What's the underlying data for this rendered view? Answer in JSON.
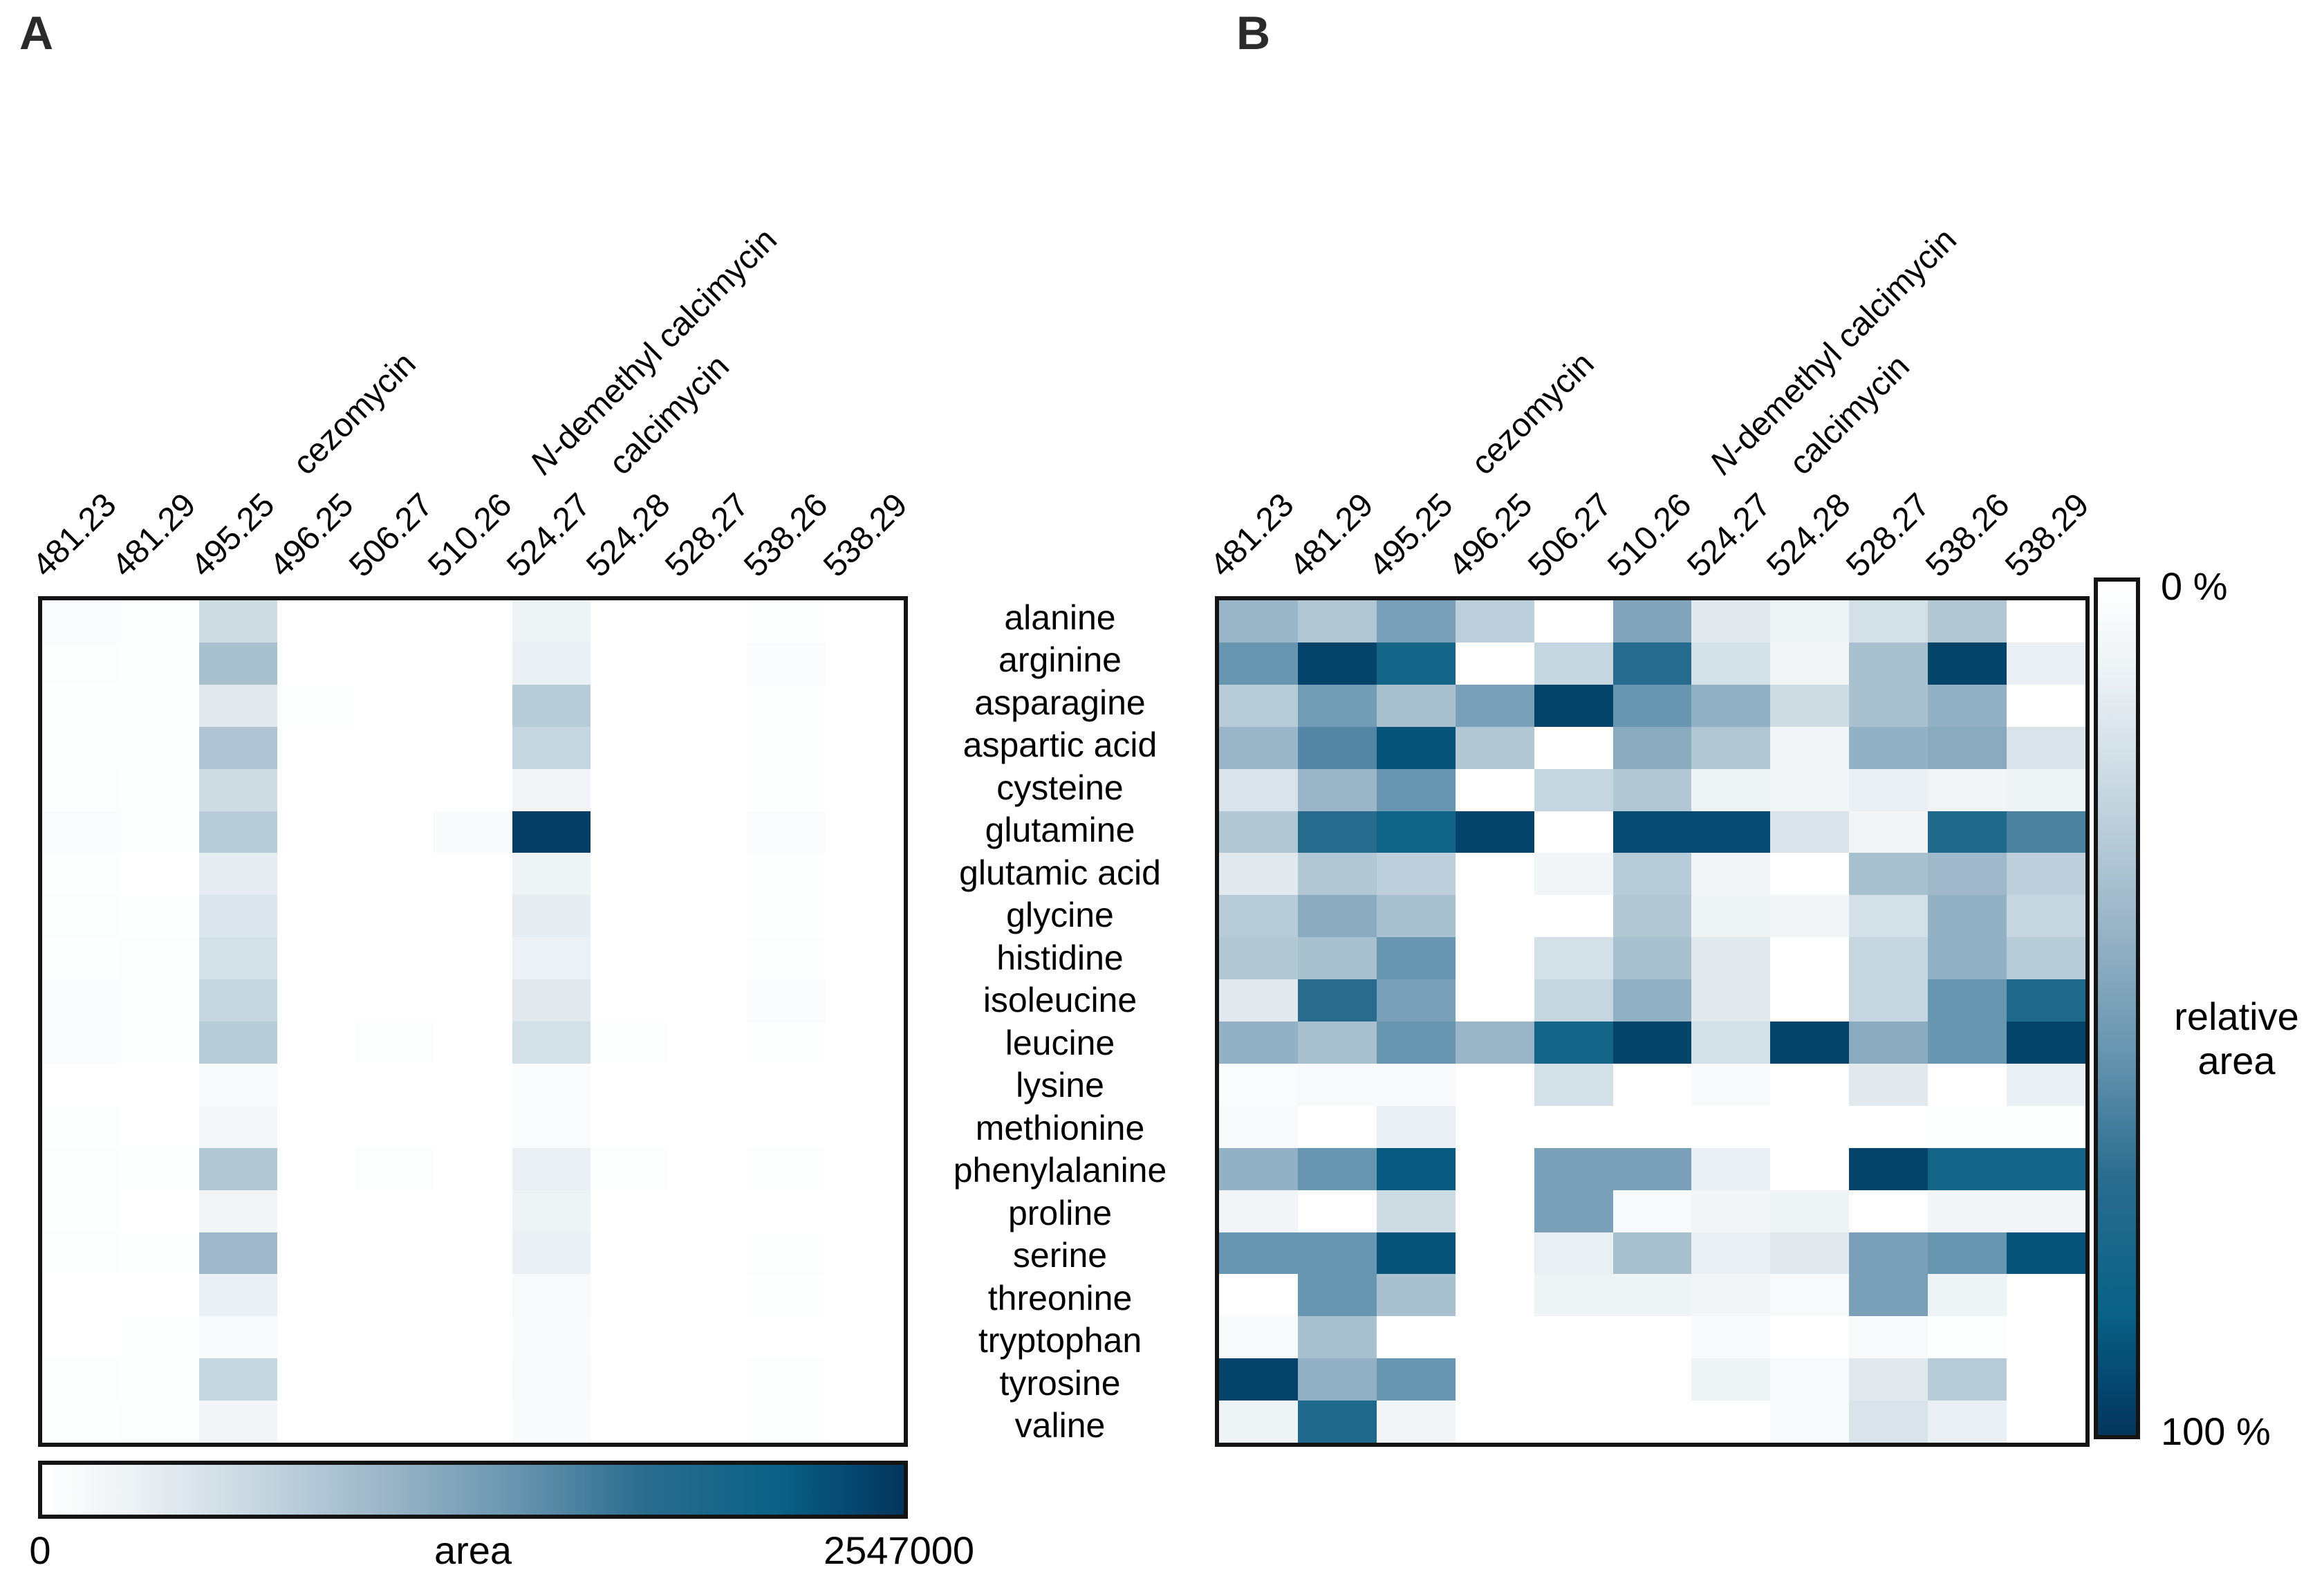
{
  "figure": {
    "panel_a": {
      "label": "A"
    },
    "panel_b": {
      "label": "B"
    },
    "colorbar_a": {
      "title": "area",
      "min_label": "0",
      "max_label": "2547000",
      "orientation": "horizontal"
    },
    "colorbar_b": {
      "title": "relative area",
      "min_label": "0 %",
      "max_label": "100 %",
      "orientation": "vertical"
    },
    "colors": {
      "heat_min": "#ffffff",
      "heat_mid": "#6895b0",
      "heat_max": "#03355b",
      "border": "#141414"
    }
  },
  "chart_data": [
    {
      "panel": "A",
      "type": "heatmap",
      "columns": [
        {
          "mz": "481.23",
          "compound": ""
        },
        {
          "mz": "481.29",
          "compound": ""
        },
        {
          "mz": "495.25",
          "compound": "cezomycin",
          "compound_italic_first": false
        },
        {
          "mz": "496.25",
          "compound": ""
        },
        {
          "mz": "506.27",
          "compound": ""
        },
        {
          "mz": "510.26",
          "compound": "N-demethyl calcimycin",
          "compound_italic_first": true
        },
        {
          "mz": "524.27",
          "compound": "calcimycin",
          "compound_italic_first": false
        },
        {
          "mz": "524.28",
          "compound": ""
        },
        {
          "mz": "528.27",
          "compound": ""
        },
        {
          "mz": "538.26",
          "compound": ""
        },
        {
          "mz": "538.29",
          "compound": ""
        }
      ],
      "rows": [
        "alanine",
        "arginine",
        "asparagine",
        "aspartic acid",
        "cysteine",
        "glutamine",
        "glutamic acid",
        "glycine",
        "histidine",
        "isoleucine",
        "leucine",
        "lysine",
        "methionine",
        "phenylalanine",
        "proline",
        "serine",
        "threonine",
        "tryptophan",
        "tyrosine",
        "valine"
      ],
      "colorscale": {
        "label": "area",
        "min": 0,
        "max": 2547000
      },
      "values_are_fraction_of_max": true,
      "values": [
        [
          0.03,
          0.01,
          0.22,
          0,
          0,
          0,
          0.1,
          0,
          0,
          0.02,
          0
        ],
        [
          0.02,
          0.01,
          0.35,
          0,
          0,
          0,
          0.12,
          0,
          0,
          0.03,
          0
        ],
        [
          0.01,
          0.01,
          0.15,
          0.02,
          0,
          0,
          0.3,
          0,
          0,
          0.02,
          0
        ],
        [
          0.01,
          0.01,
          0.33,
          0,
          0,
          0,
          0.25,
          0,
          0,
          0.02,
          0
        ],
        [
          0.02,
          0.01,
          0.22,
          0,
          0,
          0,
          0.08,
          0,
          0,
          0.01,
          0
        ],
        [
          0.03,
          0.01,
          0.3,
          0,
          0,
          0.04,
          0.97,
          0,
          0,
          0.03,
          0
        ],
        [
          0.01,
          0,
          0.13,
          0,
          0,
          0,
          0.1,
          0,
          0,
          0.01,
          0
        ],
        [
          0.02,
          0.01,
          0.17,
          0,
          0,
          0,
          0.13,
          0,
          0,
          0.01,
          0
        ],
        [
          0.01,
          0.02,
          0.2,
          0,
          0,
          0,
          0.11,
          0,
          0,
          0.02,
          0
        ],
        [
          0.03,
          0.01,
          0.25,
          0,
          0,
          0,
          0.15,
          0,
          0,
          0.03,
          0
        ],
        [
          0.03,
          0.01,
          0.3,
          0,
          0.02,
          0,
          0.2,
          0.02,
          0,
          0.02,
          0
        ],
        [
          0,
          0,
          0.04,
          0,
          0,
          0,
          0.03,
          0,
          0,
          0,
          0
        ],
        [
          0.01,
          0,
          0.07,
          0,
          0,
          0,
          0.03,
          0,
          0,
          0,
          0
        ],
        [
          0.02,
          0.01,
          0.32,
          0,
          0.02,
          0,
          0.12,
          0.02,
          0,
          0.02,
          0
        ],
        [
          0.01,
          0,
          0.08,
          0,
          0,
          0,
          0.1,
          0,
          0,
          0,
          0
        ],
        [
          0.02,
          0.01,
          0.38,
          0,
          0,
          0,
          0.12,
          0,
          0,
          0.02,
          0
        ],
        [
          0,
          0,
          0.12,
          0,
          0,
          0,
          0.05,
          0,
          0,
          0.01,
          0
        ],
        [
          0,
          0.01,
          0.04,
          0,
          0,
          0,
          0.04,
          0,
          0,
          0,
          0
        ],
        [
          0.02,
          0.01,
          0.25,
          0,
          0,
          0,
          0.05,
          0,
          0,
          0.02,
          0
        ],
        [
          0.01,
          0.02,
          0.08,
          0,
          0,
          0,
          0.04,
          0,
          0,
          0.01,
          0
        ]
      ]
    },
    {
      "panel": "B",
      "type": "heatmap",
      "columns": [
        {
          "mz": "481.23",
          "compound": ""
        },
        {
          "mz": "481.29",
          "compound": ""
        },
        {
          "mz": "495.25",
          "compound": "cezomycin",
          "compound_italic_first": false
        },
        {
          "mz": "496.25",
          "compound": ""
        },
        {
          "mz": "506.27",
          "compound": ""
        },
        {
          "mz": "510.26",
          "compound": "N-demethyl calcimycin",
          "compound_italic_first": true
        },
        {
          "mz": "524.27",
          "compound": "calcimycin",
          "compound_italic_first": false
        },
        {
          "mz": "524.28",
          "compound": ""
        },
        {
          "mz": "528.27",
          "compound": ""
        },
        {
          "mz": "538.26",
          "compound": ""
        },
        {
          "mz": "538.29",
          "compound": ""
        }
      ],
      "rows": [
        "alanine",
        "arginine",
        "asparagine",
        "aspartic acid",
        "cysteine",
        "glutamine",
        "glutamic acid",
        "glycine",
        "histidine",
        "isoleucine",
        "leucine",
        "lysine",
        "methionine",
        "phenylalanine",
        "proline",
        "serine",
        "threonine",
        "tryptophan",
        "tyrosine",
        "valine"
      ],
      "colorscale": {
        "label": "relative area",
        "min_percent": 0,
        "max_percent": 100
      },
      "values_are_fraction_of_max": true,
      "values": [
        [
          0.4,
          0.32,
          0.5,
          0.28,
          0,
          0.48,
          0.15,
          0.1,
          0.2,
          0.32,
          0
        ],
        [
          0.55,
          0.95,
          0.8,
          0,
          0.25,
          0.72,
          0.2,
          0.08,
          0.35,
          0.95,
          0.12
        ],
        [
          0.3,
          0.52,
          0.35,
          0.5,
          0.95,
          0.55,
          0.42,
          0.22,
          0.35,
          0.42,
          0
        ],
        [
          0.4,
          0.6,
          0.9,
          0.32,
          0,
          0.45,
          0.32,
          0.08,
          0.42,
          0.45,
          0.18
        ],
        [
          0.18,
          0.4,
          0.55,
          0,
          0.25,
          0.32,
          0.1,
          0.08,
          0.12,
          0.08,
          0.1
        ],
        [
          0.32,
          0.72,
          0.82,
          0.95,
          0,
          0.93,
          0.93,
          0.18,
          0.08,
          0.75,
          0.62
        ],
        [
          0.15,
          0.32,
          0.28,
          0,
          0.08,
          0.3,
          0.08,
          0,
          0.35,
          0.38,
          0.28
        ],
        [
          0.3,
          0.45,
          0.35,
          0,
          0,
          0.32,
          0.1,
          0.08,
          0.2,
          0.42,
          0.25
        ],
        [
          0.32,
          0.35,
          0.55,
          0,
          0.2,
          0.35,
          0.15,
          0,
          0.25,
          0.42,
          0.3
        ],
        [
          0.15,
          0.7,
          0.5,
          0,
          0.25,
          0.42,
          0.15,
          0,
          0.25,
          0.55,
          0.75
        ],
        [
          0.42,
          0.35,
          0.55,
          0.4,
          0.8,
          0.95,
          0.2,
          0.95,
          0.45,
          0.55,
          0.95
        ],
        [
          0.03,
          0.05,
          0.05,
          0,
          0.2,
          0,
          0.05,
          0,
          0.15,
          0,
          0.12
        ],
        [
          0.05,
          0,
          0.12,
          0,
          0,
          0,
          0,
          0,
          0,
          0.02,
          0.02
        ],
        [
          0.42,
          0.55,
          0.88,
          0,
          0.5,
          0.5,
          0.12,
          0,
          0.95,
          0.8,
          0.8
        ],
        [
          0.08,
          0,
          0.22,
          0,
          0.5,
          0.05,
          0.08,
          0.1,
          0,
          0.08,
          0.08
        ],
        [
          0.55,
          0.55,
          0.9,
          0,
          0.12,
          0.35,
          0.12,
          0.15,
          0.5,
          0.55,
          0.9
        ],
        [
          0,
          0.55,
          0.35,
          0,
          0.1,
          0.1,
          0.08,
          0.05,
          0.5,
          0.1,
          0
        ],
        [
          0.05,
          0.35,
          0,
          0,
          0,
          0,
          0.05,
          0,
          0.05,
          0.02,
          0
        ],
        [
          0.95,
          0.42,
          0.55,
          0,
          0,
          0,
          0.1,
          0.05,
          0.15,
          0.3,
          0
        ],
        [
          0.1,
          0.75,
          0.08,
          0,
          0,
          0,
          0,
          0.05,
          0.18,
          0.12,
          0
        ]
      ]
    }
  ]
}
